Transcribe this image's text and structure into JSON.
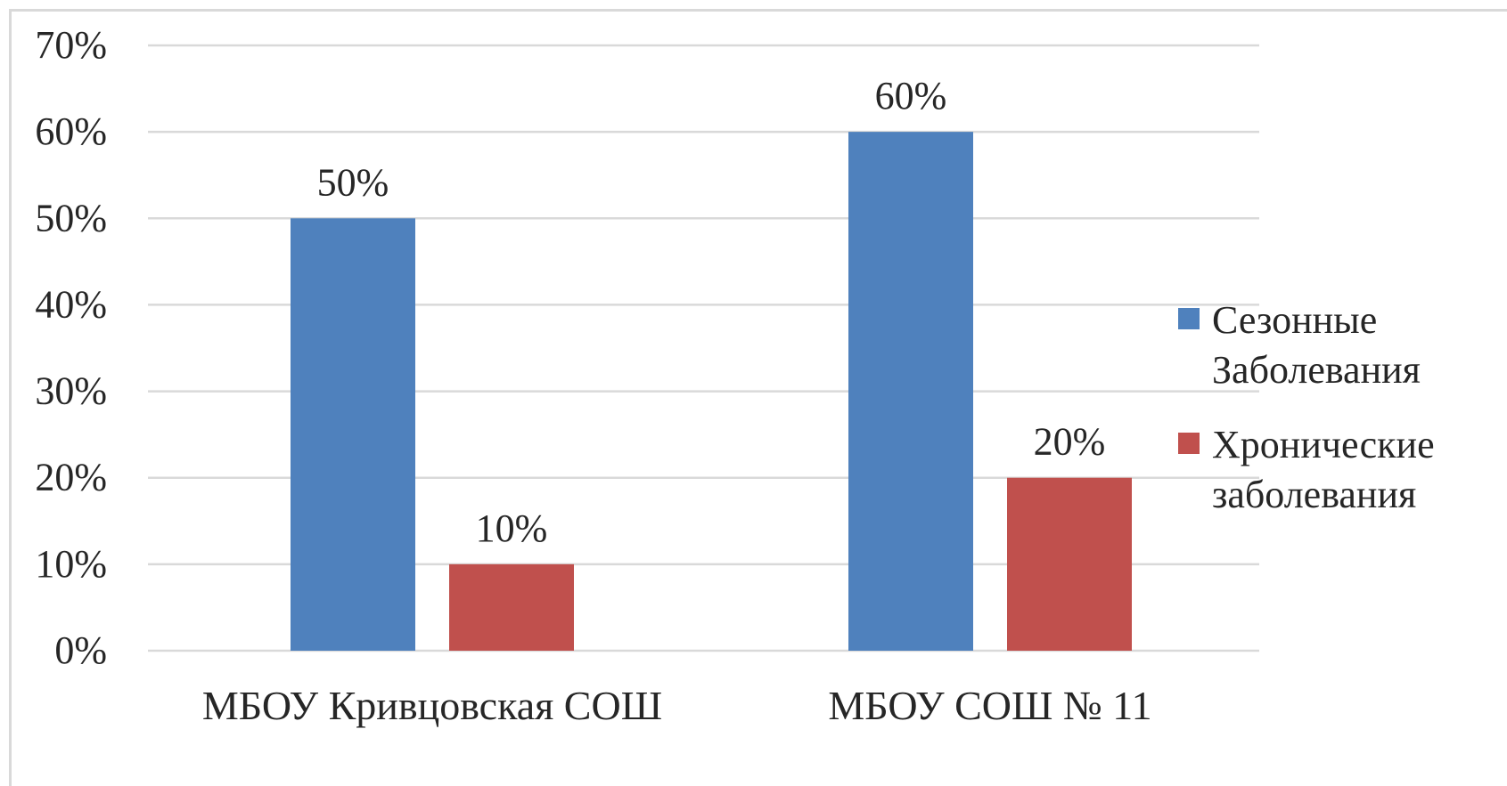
{
  "chart_data": {
    "type": "bar",
    "title": "",
    "xlabel": "",
    "ylabel": "",
    "categories": [
      "МБОУ Кривцовская СОШ",
      "МБОУ СОШ № 11"
    ],
    "series": [
      {
        "name": "Сезонные Заболевания",
        "name_lines": [
          "Сезонные",
          "Заболевания"
        ],
        "color": "#4f81bd",
        "values": [
          50,
          60
        ],
        "labels": [
          "50%",
          "60%"
        ]
      },
      {
        "name": "Хронические заболевания",
        "name_lines": [
          "Хронические",
          "заболевания"
        ],
        "color": "#c0504d",
        "values": [
          10,
          20
        ],
        "labels": [
          "10%",
          "20%"
        ]
      }
    ],
    "ylim": [
      0,
      70
    ],
    "yticks": [
      0,
      10,
      20,
      30,
      40,
      50,
      60,
      70
    ],
    "ytick_labels": [
      "0%",
      "10%",
      "20%",
      "30%",
      "40%",
      "50%",
      "60%",
      "70%"
    ],
    "grid": true,
    "gridline_color": "#d9d9d9",
    "legend_position": "right"
  }
}
